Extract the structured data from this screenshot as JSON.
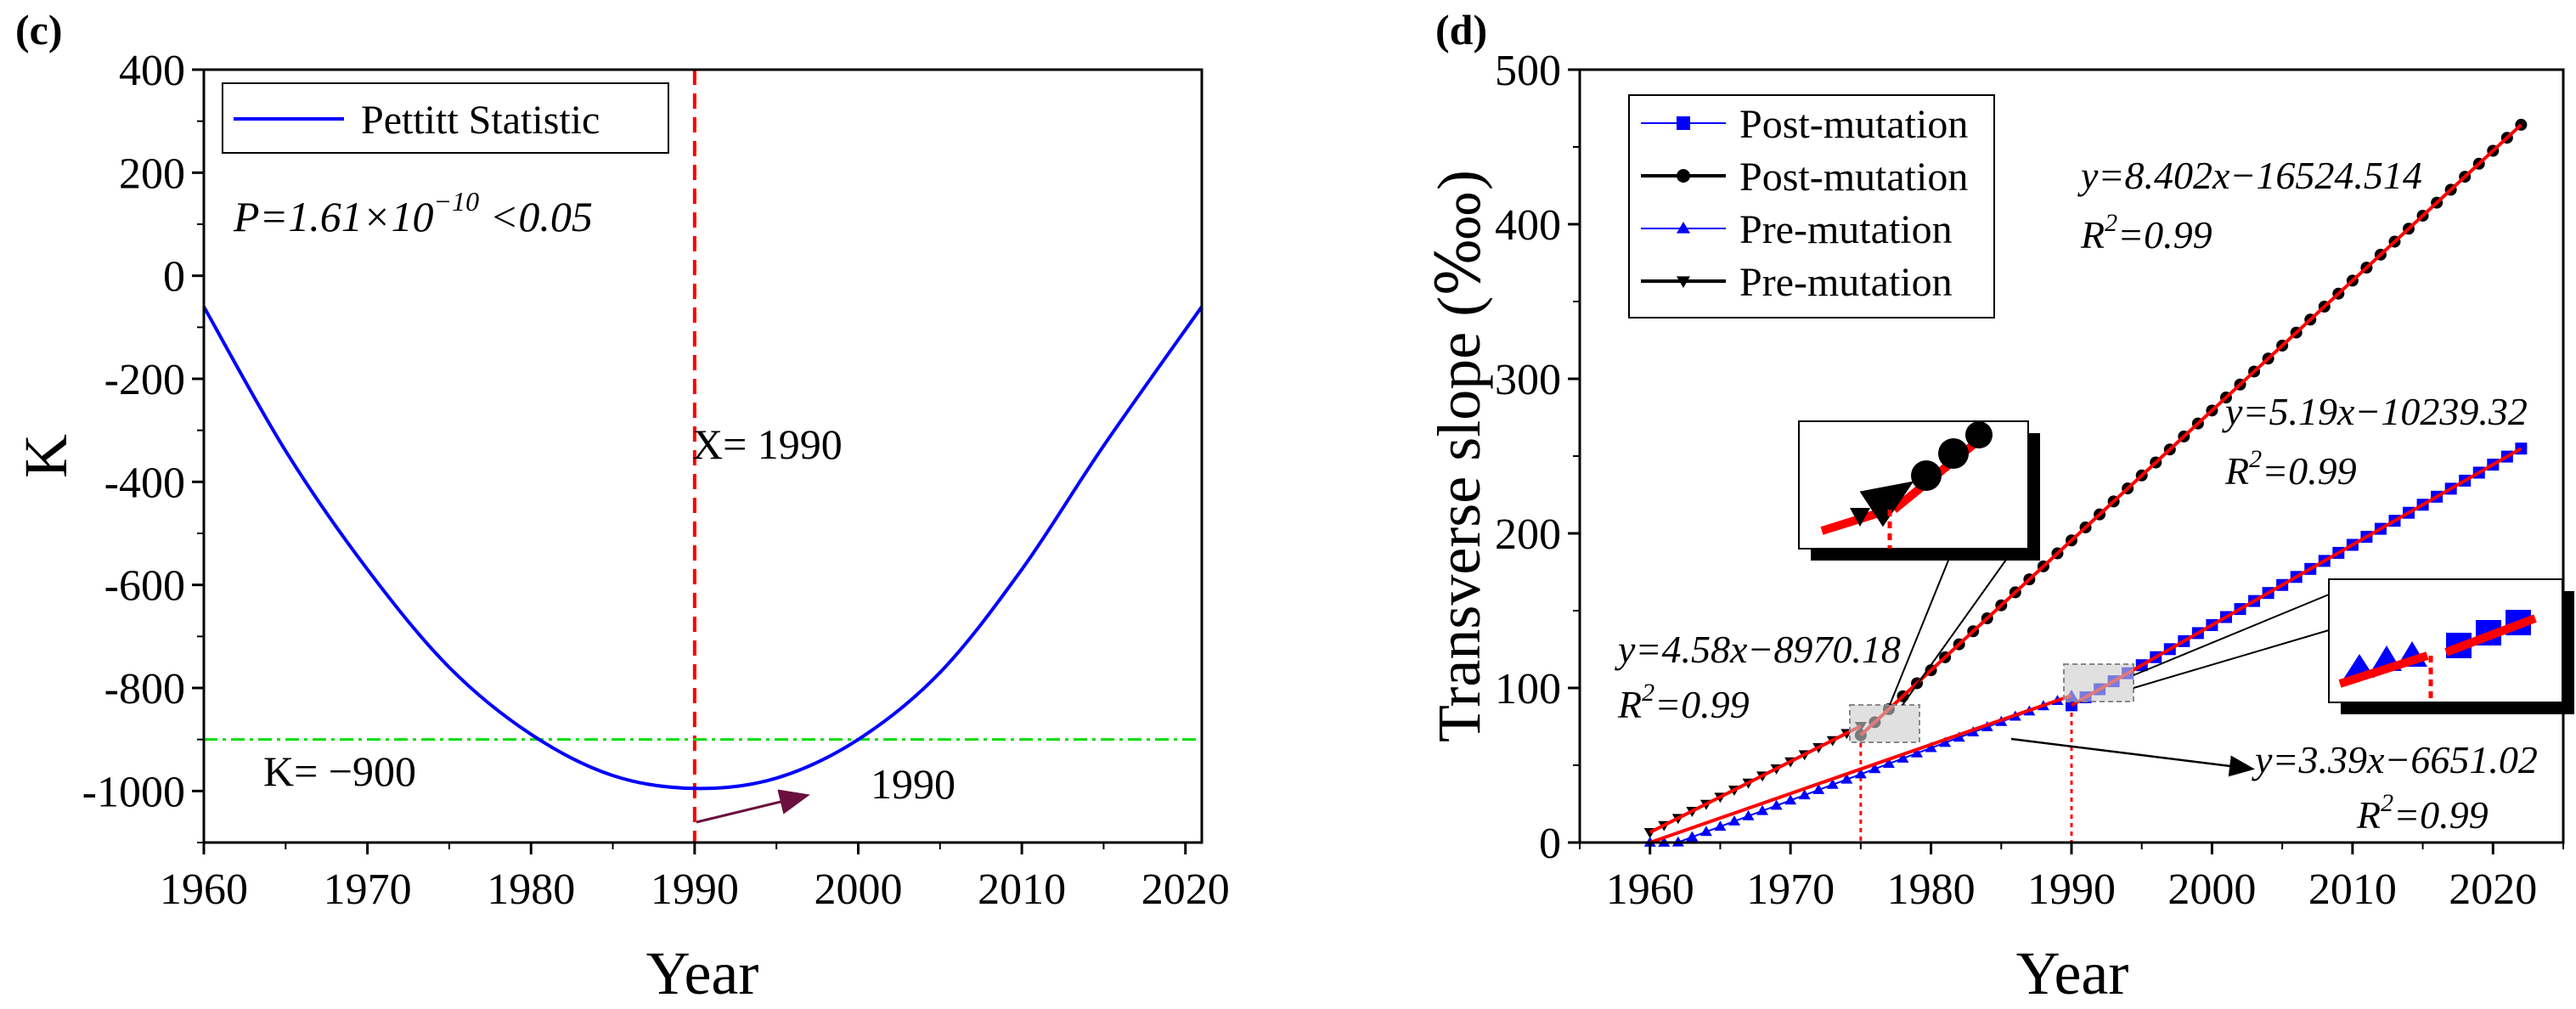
{
  "chart_data": [
    {
      "panel_label": "c",
      "type": "line",
      "title": "",
      "xlabel": "Year",
      "ylabel": "K",
      "xlim": [
        1960,
        2021
      ],
      "ylim": [
        -1100,
        400
      ],
      "xticks": [
        1960,
        1970,
        1980,
        1990,
        2000,
        2010,
        2020
      ],
      "yticks": [
        -1000,
        -800,
        -600,
        -400,
        -200,
        0,
        200,
        400
      ],
      "ytick_labels": [
        "-1000",
        "-800",
        "-600",
        "-400",
        "-200",
        "0",
        "200",
        "400"
      ],
      "legend": {
        "position": "top-left",
        "entries": [
          "Pettitt Statistic"
        ]
      },
      "series": [
        {
          "name": "Pettitt Statistic",
          "color": "#0000ff",
          "x": [
            1960,
            1965,
            1970,
            1975,
            1980,
            1985,
            1990,
            1995,
            2000,
            2005,
            2010,
            2015,
            2021
          ],
          "y": [
            -60,
            -340,
            -570,
            -760,
            -890,
            -970,
            -995,
            -975,
            -900,
            -770,
            -570,
            -330,
            -60
          ]
        }
      ],
      "reference_lines": [
        {
          "orientation": "vertical",
          "value": 1990,
          "color": "#ff0000",
          "style": "dashed",
          "label": "X= 1990"
        },
        {
          "orientation": "horizontal",
          "value": -900,
          "color": "#00dd00",
          "style": "dash-dot",
          "label": "K= −900"
        }
      ],
      "annotations": {
        "p_value_main": "P=1.61×10",
        "p_value_exp": "−10",
        "p_value_tail": " <0.05",
        "arrow_label": "1990"
      }
    },
    {
      "panel_label": "d",
      "type": "line",
      "title": "",
      "xlabel": "Year",
      "ylabel": "Transverse slope (‱)",
      "xlim": [
        1955,
        2025
      ],
      "ylim": [
        0,
        500
      ],
      "xticks": [
        1960,
        1970,
        1980,
        1990,
        2000,
        2010,
        2020
      ],
      "yticks": [
        0,
        100,
        200,
        300,
        400,
        500
      ],
      "legend": {
        "position": "top-left",
        "entries": [
          {
            "label": "Post-mutation",
            "marker": "square",
            "color": "#0000ff"
          },
          {
            "label": "Post-mutation",
            "marker": "circle",
            "color": "#000000"
          },
          {
            "label": "Pre-mutation",
            "marker": "triangle-up",
            "color": "#0000ff"
          },
          {
            "label": "Pre-mutation",
            "marker": "triangle-down",
            "color": "#000000"
          }
        ]
      },
      "series": [
        {
          "name": "Pre-mutation",
          "marker": "triangle-down",
          "color": "#000000",
          "x_start": 1960,
          "x_end": 1975,
          "slope": 4.58,
          "intercept": -8970.18
        },
        {
          "name": "Post-mutation",
          "marker": "circle",
          "color": "#000000",
          "x_start": 1975,
          "x_end": 2022,
          "slope": 8.402,
          "intercept": -16524.514
        },
        {
          "name": "Pre-mutation",
          "marker": "triangle-up",
          "color": "#0000ff",
          "x_start": 1960,
          "x_end": 1990,
          "slope": 3.39,
          "intercept": -6651.02
        },
        {
          "name": "Post-mutation",
          "marker": "square",
          "color": "#0000ff",
          "x_start": 1990,
          "x_end": 2022,
          "slope": 5.19,
          "intercept": -10239.32
        }
      ],
      "fit_line_color": "#ff0000",
      "mutation_years": [
        1975,
        1990
      ],
      "equations": [
        {
          "eq": "y=8.402x−16524.514",
          "r2": "0.99"
        },
        {
          "eq": "y=5.19x−10239.32",
          "r2": "0.99"
        },
        {
          "eq": "y=4.58x−8970.18",
          "r2": "0.99"
        },
        {
          "eq": "y=3.39x−6651.02",
          "r2": "0.99"
        }
      ],
      "r2_prefix": "R",
      "r2_exp": "2",
      "r2_infix": "="
    }
  ]
}
